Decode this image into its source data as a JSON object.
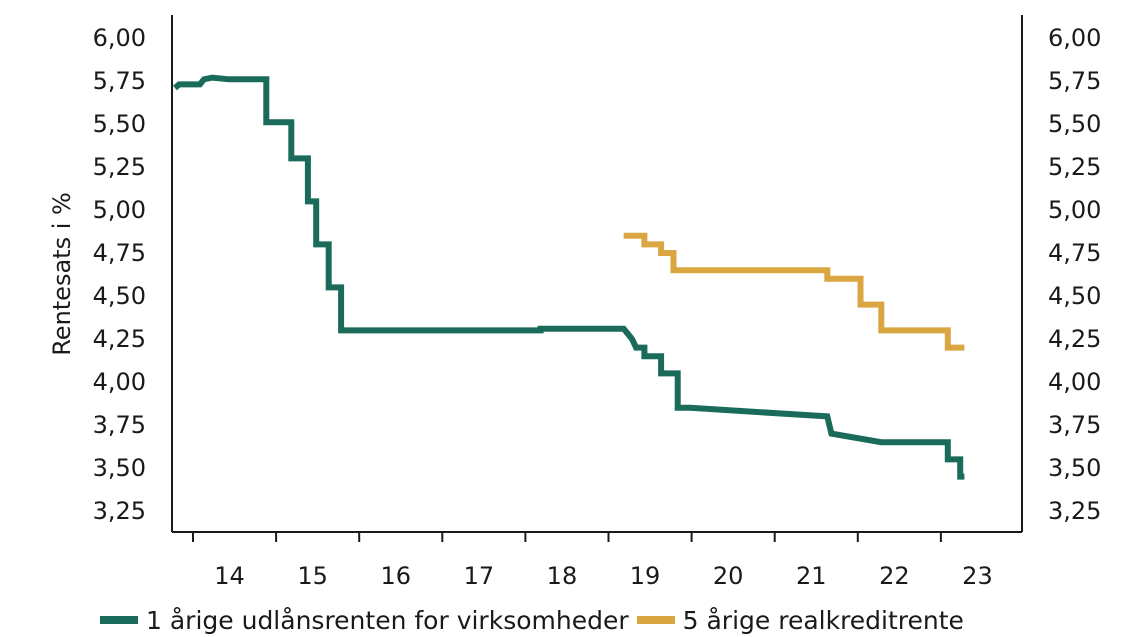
{
  "chart_data": {
    "type": "line",
    "ylabel": "Rentesats i %",
    "ylim": [
      3.25,
      6.0
    ],
    "y_ticks": [
      "6,00",
      "5,75",
      "5,50",
      "5,25",
      "5,00",
      "4,75",
      "4,50",
      "4,25",
      "4,00",
      "3,75",
      "3,50",
      "3,25"
    ],
    "x_ticks": [
      "14",
      "15",
      "16",
      "17",
      "18",
      "19",
      "20",
      "21",
      "22",
      "23"
    ],
    "grid": false,
    "legend_position": "bottom",
    "series": [
      {
        "name": "1 årige udlånsrenten for virksomheder",
        "color": "#1a6b5a",
        "x": [
          13.8,
          13.85,
          14.1,
          14.15,
          14.25,
          14.45,
          14.9,
          14.9,
          15.2,
          15.2,
          15.4,
          15.4,
          15.5,
          15.5,
          15.65,
          15.65,
          15.8,
          15.8,
          18.2,
          18.2,
          19.2,
          19.3,
          19.35,
          19.45,
          19.45,
          19.65,
          19.65,
          19.85,
          19.85,
          20.0,
          20.0,
          21.65,
          21.7,
          21.7,
          22.3,
          22.3,
          23.1,
          23.1,
          23.25,
          23.25,
          23.3
        ],
        "y": [
          5.71,
          5.73,
          5.73,
          5.76,
          5.77,
          5.76,
          5.76,
          5.51,
          5.51,
          5.3,
          5.3,
          5.05,
          5.05,
          4.8,
          4.8,
          4.55,
          4.55,
          4.3,
          4.3,
          4.31,
          4.31,
          4.25,
          4.2,
          4.2,
          4.15,
          4.15,
          4.05,
          4.05,
          3.85,
          3.85,
          3.85,
          3.8,
          3.7,
          3.7,
          3.65,
          3.65,
          3.65,
          3.55,
          3.55,
          3.45,
          3.45
        ]
      },
      {
        "name": "5 årige realkreditrente",
        "color": "#d9a641",
        "x": [
          19.2,
          19.45,
          19.45,
          19.65,
          19.65,
          19.8,
          19.8,
          20.0,
          20.0,
          21.65,
          21.65,
          22.05,
          22.05,
          22.3,
          22.3,
          23.1,
          23.1,
          23.3
        ],
        "y": [
          4.85,
          4.85,
          4.8,
          4.8,
          4.75,
          4.75,
          4.65,
          4.65,
          4.65,
          4.65,
          4.6,
          4.6,
          4.45,
          4.45,
          4.3,
          4.3,
          4.2,
          4.2
        ]
      }
    ]
  }
}
